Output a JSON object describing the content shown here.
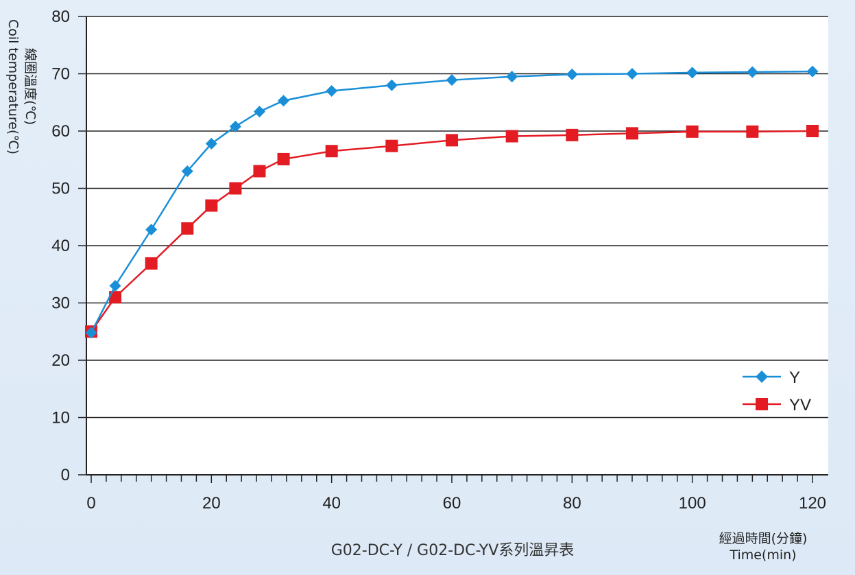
{
  "chart_data": {
    "type": "line",
    "title": "",
    "caption": "G02-DC-Y / G02-DC-YV系列溫昇表",
    "ylabel_zh": "線圈溫度(℃)",
    "ylabel_en": "Coil temperature(℃)",
    "xlabel_zh": "經過時間(分鐘)",
    "xlabel_en": "Time(min)",
    "xlim": [
      0,
      120
    ],
    "ylim": [
      0,
      80
    ],
    "xticks": [
      "0",
      "20",
      "40",
      "60",
      "80",
      "100",
      "120"
    ],
    "yticks": [
      "0",
      "10",
      "20",
      "30",
      "40",
      "50",
      "60",
      "70",
      "80"
    ],
    "grid": "horizontal",
    "legend_position": "bottom-right",
    "series": [
      {
        "name": "Y",
        "color": "#1a8fd8",
        "marker": "diamond",
        "x": [
          0,
          4,
          10,
          16,
          20,
          24,
          28,
          32,
          40,
          50,
          60,
          70,
          80,
          90,
          100,
          110,
          120
        ],
        "y": [
          24.8,
          33,
          42.8,
          53,
          57.8,
          60.8,
          63.4,
          65.3,
          67,
          68,
          68.9,
          69.5,
          69.9,
          70,
          70.2,
          70.3,
          70.4
        ]
      },
      {
        "name": "YV",
        "color": "#e31b23",
        "marker": "square",
        "x": [
          0,
          4,
          10,
          16,
          20,
          24,
          28,
          32,
          40,
          50,
          60,
          70,
          80,
          90,
          100,
          110,
          120
        ],
        "y": [
          25,
          31,
          36.9,
          43,
          47,
          50,
          53,
          55.1,
          56.5,
          57.4,
          58.4,
          59.1,
          59.3,
          59.6,
          59.9,
          59.9,
          60
        ]
      }
    ]
  }
}
